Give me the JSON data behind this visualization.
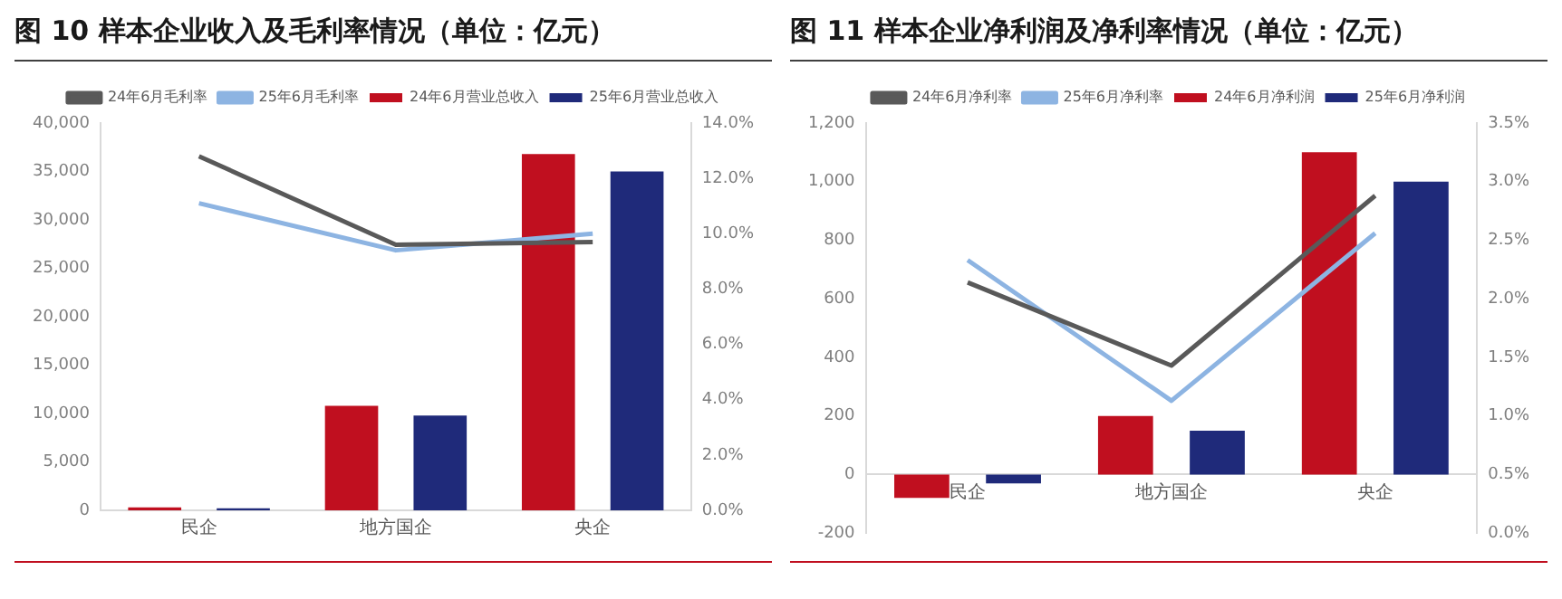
{
  "chart_data": [
    {
      "type": "bar",
      "title": "图 10  样本企业收入及毛利率情况（单位：亿元）",
      "categories": [
        "民企",
        "地方国企",
        "央企"
      ],
      "series": [
        {
          "name": "24年6月营业总收入",
          "color": "#c00f1f",
          "values": [
            300,
            10800,
            36800
          ]
        },
        {
          "name": "25年6月营业总收入",
          "color": "#1f2a7a",
          "values": [
            200,
            9800,
            35000
          ]
        },
        {
          "name": "24年6月毛利率",
          "type": "line",
          "axis": "y2",
          "color": "#595959",
          "values": [
            12.8,
            9.6,
            9.7
          ]
        },
        {
          "name": "25年6月毛利率",
          "type": "line",
          "axis": "y2",
          "color": "#8db4e2",
          "values": [
            11.1,
            9.4,
            10.0
          ]
        }
      ],
      "ylim": [
        0,
        40000
      ],
      "yticks": [
        0,
        {
          "value": 5000,
          "label": "5,000"
        },
        {
          "value": 10000,
          "label": "10,000"
        },
        {
          "value": 15000,
          "label": "15,000"
        },
        {
          "value": 20000,
          "label": "20,000"
        },
        {
          "value": 25000,
          "label": "25,000"
        },
        {
          "value": 30000,
          "label": "30,000"
        },
        {
          "value": 35000,
          "label": "35,000"
        },
        {
          "value": 40000,
          "label": "40,000"
        }
      ],
      "y2lim": [
        0,
        14
      ],
      "y2ticks": [
        {
          "value": 0,
          "label": "0.0%"
        },
        {
          "value": 2,
          "label": "2.0%"
        },
        {
          "value": 4,
          "label": "4.0%"
        },
        {
          "value": 6,
          "label": "6.0%"
        },
        {
          "value": 8,
          "label": "8.0%"
        },
        {
          "value": 10,
          "label": "10.0%"
        },
        {
          "value": 12,
          "label": "12.0%"
        },
        {
          "value": 14,
          "label": "14.0%"
        }
      ],
      "legend": "top",
      "marker": "none",
      "grid": false
    },
    {
      "type": "bar",
      "title": "图 11  样本企业净利润及净利率情况（单位：亿元）",
      "categories": [
        "民企",
        "地方国企",
        "央企"
      ],
      "series": [
        {
          "name": "24年6月净利润",
          "color": "#c00f1f",
          "values": [
            -80,
            200,
            1100
          ]
        },
        {
          "name": "25年6月净利润",
          "color": "#1f2a7a",
          "values": [
            -30,
            150,
            1000
          ]
        },
        {
          "name": "24年6月净利率",
          "type": "line",
          "axis": "y2",
          "color": "#595959",
          "values": [
            2.14,
            1.43,
            2.88
          ]
        },
        {
          "name": "25年6月净利率",
          "type": "line",
          "axis": "y2",
          "color": "#8db4e2",
          "values": [
            2.33,
            1.13,
            2.56
          ]
        }
      ],
      "ylim": [
        -200,
        1200
      ],
      "yticks": [
        -200,
        0,
        200,
        400,
        600,
        800,
        {
          "value": 1000,
          "label": "1,000"
        },
        {
          "value": 1200,
          "label": "1,200"
        }
      ],
      "y2lim": [
        0,
        3.5
      ],
      "y2ticks": [
        {
          "value": 0,
          "label": "0.0%"
        },
        {
          "value": 0.5,
          "label": "0.5%"
        },
        {
          "value": 1,
          "label": "1.0%"
        },
        {
          "value": 1.5,
          "label": "1.5%"
        },
        {
          "value": 2,
          "label": "2.0%"
        },
        {
          "value": 2.5,
          "label": "2.5%"
        },
        {
          "value": 3,
          "label": "3.0%"
        },
        {
          "value": 3.5,
          "label": "3.5%"
        }
      ],
      "legend": "top",
      "marker": "none",
      "grid": false
    }
  ]
}
